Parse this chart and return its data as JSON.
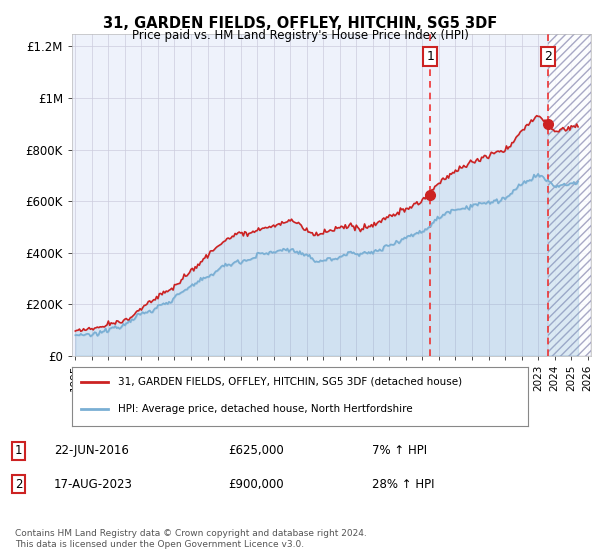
{
  "title": "31, GARDEN FIELDS, OFFLEY, HITCHIN, SG5 3DF",
  "subtitle": "Price paid vs. HM Land Registry's House Price Index (HPI)",
  "legend_line1": "31, GARDEN FIELDS, OFFLEY, HITCHIN, SG5 3DF (detached house)",
  "legend_line2": "HPI: Average price, detached house, North Hertfordshire",
  "transaction1_date": "22-JUN-2016",
  "transaction1_price": "£625,000",
  "transaction1_hpi": "7% ↑ HPI",
  "transaction2_date": "17-AUG-2023",
  "transaction2_price": "£900,000",
  "transaction2_hpi": "28% ↑ HPI",
  "footer": "Contains HM Land Registry data © Crown copyright and database right 2024.\nThis data is licensed under the Open Government Licence v3.0.",
  "hpi_color": "#7aafd4",
  "price_color": "#cc2222",
  "dashed_line_color": "#ee3333",
  "marker1_x": 2016.47,
  "marker1_y": 625000,
  "marker2_x": 2023.62,
  "marker2_y": 900000,
  "ylim": [
    0,
    1250000
  ],
  "xlim": [
    1994.8,
    2026.2
  ],
  "yticks": [
    0,
    200000,
    400000,
    600000,
    800000,
    1000000,
    1200000
  ],
  "ytick_labels": [
    "£0",
    "£200K",
    "£400K",
    "£600K",
    "£800K",
    "£1M",
    "£1.2M"
  ],
  "xticks": [
    1995,
    1996,
    1997,
    1998,
    1999,
    2000,
    2001,
    2002,
    2003,
    2004,
    2005,
    2006,
    2007,
    2008,
    2009,
    2010,
    2011,
    2012,
    2013,
    2014,
    2015,
    2016,
    2017,
    2018,
    2019,
    2020,
    2021,
    2022,
    2023,
    2024,
    2025,
    2026
  ],
  "hatch_region_start": 2023.62,
  "hatch_region_end": 2026.2,
  "background_color": "#ffffff",
  "plot_bg_color": "#eef2fb"
}
